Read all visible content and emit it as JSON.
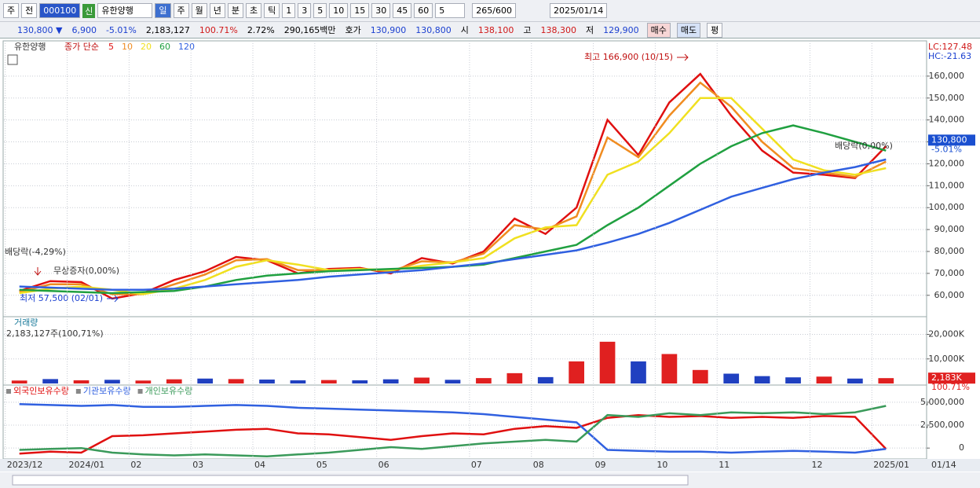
{
  "toolbar": {
    "market": "주",
    "mode": "전",
    "code": "000100",
    "tag": "신",
    "name": "유한양행",
    "periods": [
      "일",
      "주",
      "월",
      "년",
      "분",
      "초",
      "틱"
    ],
    "intervals": [
      "1",
      "3",
      "5",
      "10",
      "15",
      "30",
      "45",
      "60"
    ],
    "count": "5",
    "range": "265/600",
    "date": "2025/01/14"
  },
  "info": {
    "price": "130,800 ▼",
    "change": "6,900",
    "rate": "-5.01%",
    "volume": "2,183,127",
    "vol_rate": "100.71%",
    "turnover": "2.72%",
    "amount": "290,165백만",
    "quote_label": "호가",
    "ask": "130,900",
    "bid": "130,800",
    "open_label": "시",
    "open": "138,100",
    "high_label": "고",
    "high": "138,300",
    "low_label": "저",
    "low": "129,900",
    "buy": "매수",
    "sell": "매도",
    "avg": "평"
  },
  "chart_data": [
    {
      "type": "line",
      "title": "유한양행",
      "subtitle": "종가 단순",
      "ylim": [
        50600,
        172500
      ],
      "yticks": [
        {
          "value": 60000,
          "label": "60,000"
        },
        {
          "value": 70000,
          "label": "70,000"
        },
        {
          "value": 80000,
          "label": "80,000"
        },
        {
          "value": 90000,
          "label": "90,000"
        },
        {
          "value": 100000,
          "label": "100,000"
        },
        {
          "value": 110000,
          "label": "110,000"
        },
        {
          "value": 120000,
          "label": "120,000"
        },
        {
          "value": 130000,
          "label": "130,000"
        },
        {
          "value": 140000,
          "label": "140,000"
        },
        {
          "value": 150000,
          "label": "150,000"
        },
        {
          "value": 160000,
          "label": "160,000"
        }
      ],
      "grid": true,
      "series": [
        {
          "name": "5",
          "color": "#e01010",
          "values": [
            62000,
            66500,
            66000,
            58500,
            61000,
            67000,
            71000,
            77500,
            76000,
            70000,
            72000,
            72500,
            70000,
            77000,
            74500,
            80000,
            95000,
            88000,
            100000,
            140000,
            124000,
            148000,
            161000,
            142000,
            126000,
            116000,
            115000,
            113500,
            128000
          ]
        },
        {
          "name": "10",
          "color": "#f08c20",
          "values": [
            61500,
            65000,
            65000,
            60500,
            60500,
            65000,
            69500,
            76000,
            76500,
            71500,
            71500,
            72000,
            71000,
            75500,
            75000,
            79000,
            92000,
            90000,
            96000,
            132000,
            123000,
            142000,
            157000,
            146000,
            130000,
            118000,
            116000,
            114000,
            121000
          ]
        },
        {
          "name": "20",
          "color": "#f0e020",
          "values": [
            61000,
            63000,
            64000,
            62500,
            60500,
            63000,
            67000,
            73000,
            76000,
            74000,
            71500,
            72000,
            71500,
            73500,
            75000,
            77000,
            86000,
            91000,
            92000,
            115000,
            121000,
            134000,
            150000,
            150000,
            136000,
            122000,
            117000,
            115000,
            118000
          ]
        },
        {
          "name": "60",
          "color": "#20a040",
          "values": [
            62500,
            62000,
            61500,
            61000,
            61500,
            62000,
            64000,
            67000,
            69000,
            70000,
            71000,
            71500,
            72000,
            72500,
            73000,
            74000,
            77000,
            80000,
            83000,
            92000,
            100000,
            110000,
            120000,
            128000,
            134000,
            137500,
            134000,
            130000,
            126000
          ]
        },
        {
          "name": "120",
          "color": "#3060e0",
          "values": [
            64000,
            63500,
            63000,
            62500,
            62500,
            63000,
            64000,
            65000,
            66000,
            67000,
            68500,
            69500,
            70500,
            71500,
            73000,
            74500,
            76500,
            78500,
            80500,
            84000,
            88000,
            93000,
            99000,
            105000,
            109000,
            113000,
            116000,
            118500,
            122000
          ]
        }
      ],
      "annotations": [
        "최고 166,900 (10/15)",
        "최저 57,500 (02/01)",
        "배당락(-4,29%)",
        "무상증자(0,00%)",
        "배당락(0,00%)"
      ],
      "marker": {
        "value": 130800,
        "label": "130,800"
      },
      "marker_change": "-5.01%",
      "lc": "LC:127.48",
      "hc": "HC:-21.63"
    },
    {
      "type": "bar",
      "title": "거래량",
      "subtitle": "2,183,127주(100,71%)",
      "ylim": [
        0,
        22400
      ],
      "yticks": [
        {
          "value": 10000,
          "label": "10,000K"
        },
        {
          "value": 20000,
          "label": "20,000K"
        }
      ],
      "grid": true,
      "series": [
        {
          "name": "거래량",
          "values": [
            1200,
            1800,
            1300,
            1500,
            1200,
            1700,
            2000,
            1800,
            1600,
            1300,
            1400,
            1300,
            1700,
            2400,
            1500,
            2200,
            4200,
            2600,
            9000,
            17000,
            9000,
            12000,
            5500,
            4000,
            3000,
            2500,
            2800,
            2000,
            2183
          ],
          "colors": [
            "#e02020",
            "#2040c0",
            "#e02020",
            "#2040c0",
            "#e02020",
            "#e02020",
            "#2040c0",
            "#e02020",
            "#2040c0",
            "#2040c0",
            "#e02020",
            "#2040c0",
            "#2040c0",
            "#e02020",
            "#2040c0",
            "#e02020",
            "#e02020",
            "#2040c0",
            "#e02020",
            "#e02020",
            "#2040c0",
            "#e02020",
            "#e02020",
            "#2040c0",
            "#2040c0",
            "#2040c0",
            "#e02020",
            "#2040c0",
            "#e02020"
          ]
        }
      ],
      "marker": {
        "value": 2183,
        "label": "2,183K"
      },
      "marker_change": "100.71%"
    },
    {
      "type": "line",
      "ylim": [
        -1100000,
        5590000
      ],
      "yticks": [
        0,
        {
          "value": 2500000,
          "label": "2,500,000"
        },
        {
          "value": 5000000,
          "label": "5,000,000"
        }
      ],
      "grid": true,
      "categories": [
        "2023/12",
        null,
        "2024/01",
        null,
        "02",
        null,
        "03",
        null,
        "04",
        null,
        "05",
        null,
        "06",
        null,
        null,
        "07",
        null,
        "08",
        null,
        "09",
        null,
        "10",
        null,
        "11",
        null,
        null,
        "12",
        null,
        "2025/01"
      ],
      "end_label": "01/14",
      "series": [
        {
          "name": "외국인보유수량",
          "color": "#e01010",
          "values": [
            -600000,
            -400000,
            -500000,
            1300000,
            1400000,
            1600000,
            1800000,
            2000000,
            2100000,
            1600000,
            1500000,
            1200000,
            900000,
            1300000,
            1600000,
            1500000,
            2100000,
            2400000,
            2200000,
            3300000,
            3600000,
            3400000,
            3500000,
            3300000,
            3400000,
            3300000,
            3500000,
            3400000,
            -100000
          ]
        },
        {
          "name": "기관보유수량",
          "color": "#3060e0",
          "values": [
            4800000,
            4700000,
            4600000,
            4700000,
            4500000,
            4500000,
            4600000,
            4700000,
            4600000,
            4400000,
            4300000,
            4200000,
            4100000,
            4000000,
            3900000,
            3700000,
            3400000,
            3100000,
            2800000,
            -200000,
            -300000,
            -400000,
            -400000,
            -500000,
            -400000,
            -300000,
            -400000,
            -500000,
            -100000
          ]
        },
        {
          "name": "개인보유수량",
          "color": "#3a9a5a",
          "values": [
            -200000,
            -100000,
            0,
            -500000,
            -700000,
            -800000,
            -700000,
            -800000,
            -900000,
            -700000,
            -500000,
            -200000,
            100000,
            -100000,
            200000,
            500000,
            700000,
            900000,
            700000,
            3600000,
            3400000,
            3800000,
            3600000,
            3900000,
            3800000,
            3900000,
            3700000,
            3900000,
            4600000
          ]
        }
      ]
    }
  ]
}
